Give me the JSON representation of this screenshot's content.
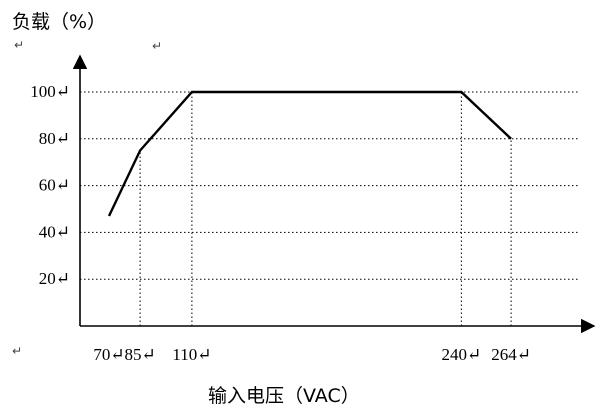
{
  "chart_data": {
    "type": "line",
    "ylabel": "负载（%）",
    "xlabel": "输入电压（VAC）",
    "xlim": [
      56,
      304
    ],
    "ylim": [
      0,
      100
    ],
    "x": [
      70,
      85,
      110,
      240,
      264
    ],
    "y": [
      47,
      75,
      100,
      100,
      80
    ],
    "x_ticks": [
      70,
      85,
      110,
      240,
      264
    ],
    "x_tick_labels": [
      "70↵",
      "85↵",
      "110↵",
      "240↵",
      "264↵"
    ],
    "y_ticks": [
      20,
      40,
      60,
      80,
      100
    ],
    "y_tick_labels": [
      "20↵",
      "40↵",
      "60↵",
      "80↵",
      "100↵"
    ],
    "grid": "dotted",
    "series": [
      {
        "values": [
          47,
          75,
          100,
          100,
          80
        ]
      }
    ]
  },
  "paragraph_marks": [
    "↵",
    "↵",
    "↵"
  ]
}
